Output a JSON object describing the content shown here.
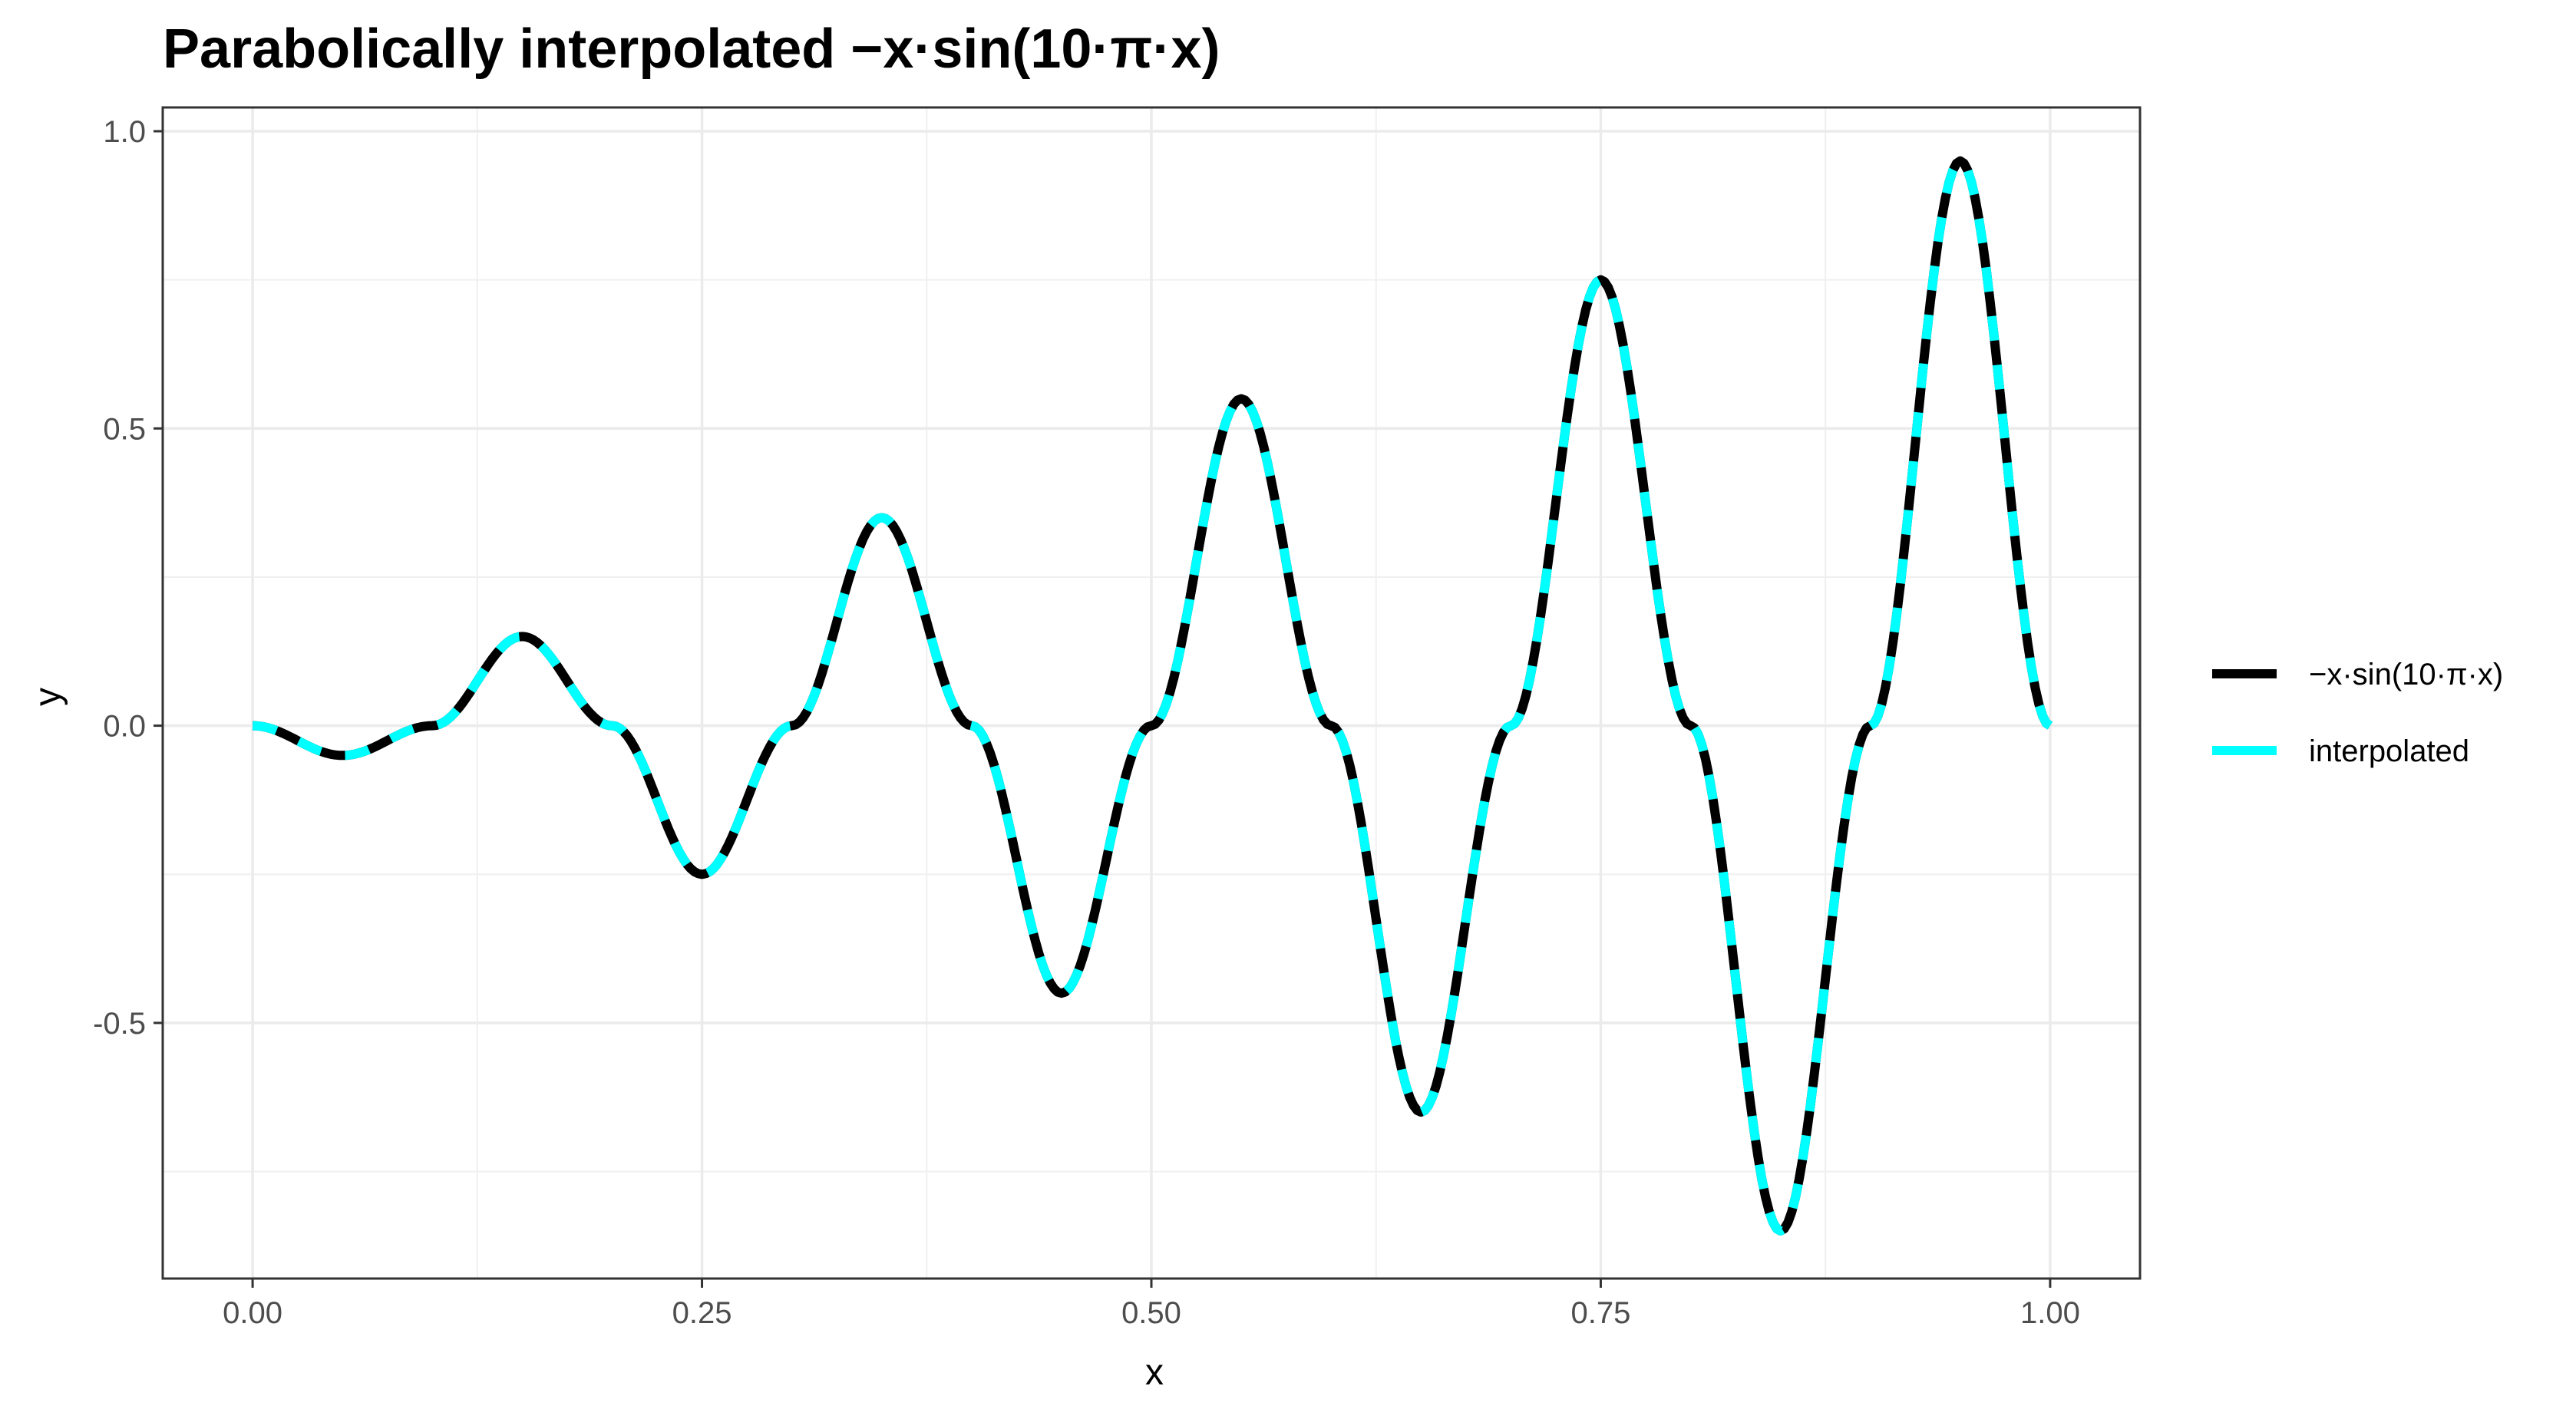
{
  "chart_data": {
    "type": "line",
    "title": "Parabolically interpolated −x·sin(10·π·x)",
    "xlabel": "x",
    "ylabel": "y",
    "xlim": [
      -0.05,
      1.05
    ],
    "ylim": [
      -0.93,
      1.04
    ],
    "x_ticks": [
      0.0,
      0.25,
      0.5,
      0.75,
      1.0
    ],
    "x_tick_labels": [
      "0.00",
      "0.25",
      "0.50",
      "0.75",
      "1.00"
    ],
    "y_ticks": [
      -0.5,
      0.0,
      0.5,
      1.0
    ],
    "y_tick_labels": [
      "-0.5",
      "0.0",
      "0.5",
      "1.0"
    ],
    "grid": true,
    "legend_position": "right",
    "x": [
      0.0,
      0.05,
      0.1,
      0.15,
      0.2,
      0.25,
      0.3,
      0.35,
      0.4,
      0.45,
      0.5,
      0.55,
      0.6,
      0.65,
      0.7,
      0.75,
      0.8,
      0.85,
      0.9,
      0.95,
      1.0
    ],
    "series": [
      {
        "name": "−x·sin(10·π·x)",
        "color": "#000000",
        "style": "solid",
        "values": [
          0.0,
          -0.05,
          0.0,
          0.15,
          0.0,
          -0.25,
          0.0,
          0.35,
          0.0,
          -0.45,
          0.0,
          0.55,
          0.0,
          -0.65,
          0.0,
          0.75,
          0.0,
          -0.85,
          0.0,
          0.95,
          0.0
        ]
      },
      {
        "name": "interpolated",
        "color": "#00ffff",
        "style": "dashed",
        "values": [
          0.0,
          -0.05,
          0.0,
          0.15,
          0.0,
          -0.25,
          0.0,
          0.35,
          0.0,
          -0.45,
          0.0,
          0.55,
          0.0,
          -0.65,
          0.0,
          0.75,
          0.0,
          -0.85,
          0.0,
          0.95,
          0.0
        ]
      }
    ]
  }
}
